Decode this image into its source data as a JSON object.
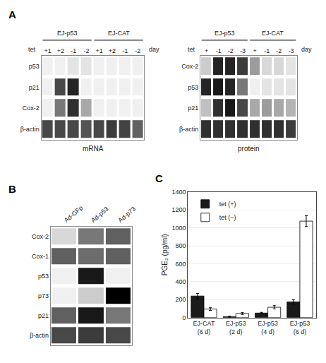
{
  "chart_data": [
    {
      "type": "heatmap",
      "title": "mRNA",
      "panel_label": "A",
      "annotations": [
        "tet",
        "day"
      ],
      "column_groups": [
        {
          "name": "EJ-p53",
          "cols": [
            "+1",
            "+2",
            "-1",
            "-2"
          ]
        },
        {
          "name": "EJ-CAT",
          "cols": [
            "+1",
            "+2",
            "-1",
            "-2"
          ]
        }
      ],
      "categories": [
        "+1",
        "+2",
        "-1",
        "-2",
        "+1",
        "+2",
        "-1",
        "-2"
      ],
      "rows": [
        "p53",
        "p21",
        "Cox-2",
        "β-actin"
      ],
      "cells": [
        [
          0,
          0,
          0.05,
          0.05,
          0,
          0,
          0,
          0
        ],
        [
          0,
          0.7,
          0.85,
          0,
          0,
          0,
          0,
          0
        ],
        [
          0,
          0.5,
          0.8,
          0.3,
          0,
          0,
          0,
          0
        ],
        [
          0.7,
          0.7,
          0.7,
          0.65,
          0.7,
          0.75,
          0.72,
          0.6
        ]
      ],
      "zlim": [
        0,
        1
      ]
    },
    {
      "type": "heatmap",
      "title": "protein",
      "annotations": [
        "tet",
        "day"
      ],
      "column_groups": [
        {
          "name": "EJ-p53",
          "cols": [
            "+",
            "-1",
            "-2",
            "-3"
          ]
        },
        {
          "name": "EJ-CAT",
          "cols": [
            "+",
            "-1",
            "-2",
            "-3"
          ]
        }
      ],
      "categories": [
        "+",
        "-1",
        "-2",
        "-3",
        "+",
        "-1",
        "-2",
        "-3"
      ],
      "rows": [
        "Cox-2",
        "p53",
        "p21",
        "β-actin"
      ],
      "cells": [
        [
          0.15,
          0.85,
          0.85,
          0.75,
          0.35,
          0.1,
          0.1,
          0.05
        ],
        [
          0.85,
          0.9,
          0.85,
          0.5,
          0,
          0.05,
          0.05,
          0.05
        ],
        [
          0.2,
          0.8,
          0.9,
          0.7,
          0.3,
          0.35,
          0.3,
          0.25
        ],
        [
          0.8,
          0.8,
          0.8,
          0.8,
          0.8,
          0.8,
          0.8,
          0.75
        ]
      ],
      "zlim": [
        0,
        1
      ]
    },
    {
      "type": "heatmap",
      "panel_label": "B",
      "categories": [
        "Ad-GFp",
        "Ad-p53",
        "Ad-p73"
      ],
      "rows": [
        "Cox-2",
        "Cox-1",
        "p53",
        "p73",
        "p21",
        "β-actin"
      ],
      "cells": [
        [
          0.1,
          0.5,
          0.6
        ],
        [
          0.6,
          0.55,
          0.6
        ],
        [
          0,
          0.9,
          0
        ],
        [
          0,
          0.15,
          1.0
        ],
        [
          0.6,
          0.9,
          0.5
        ],
        [
          0.7,
          0.75,
          0.7
        ]
      ],
      "zlim": [
        0,
        1
      ]
    },
    {
      "type": "bar",
      "panel_label": "C",
      "categories": [
        "EJ-CAT\n(6 d)",
        "EJ-p53\n(2 d)",
        "EJ-p53\n(4 d)",
        "EJ-p53\n(6 d)"
      ],
      "series": [
        {
          "name": "tet (+)",
          "color": "#1a1a1a",
          "values": [
            240,
            10,
            50,
            175
          ],
          "errors": [
            30,
            5,
            8,
            25
          ]
        },
        {
          "name": "tet (−)",
          "color": "#ffffff",
          "values": [
            95,
            45,
            115,
            1075
          ],
          "errors": [
            15,
            10,
            18,
            60
          ]
        }
      ],
      "ylabel": "PGE₂ (pg/ml)",
      "ylim": [
        0,
        1400
      ],
      "yticks": [
        0,
        200,
        400,
        600,
        800,
        1000,
        1200,
        1400
      ],
      "grid": true,
      "legend": "upper left"
    }
  ]
}
